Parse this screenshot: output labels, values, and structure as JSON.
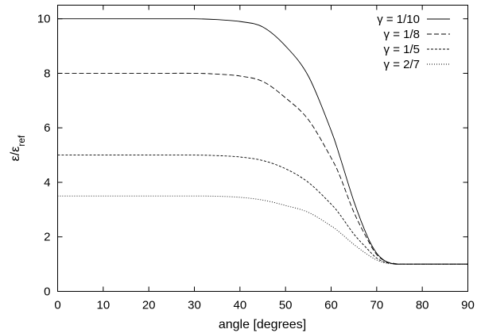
{
  "chart_data": {
    "type": "line",
    "title": "",
    "xlabel": "angle [degrees]",
    "ylabel": {
      "main": "ε/ε",
      "sub": "ref"
    },
    "xlim": [
      0,
      90
    ],
    "ylim": [
      0,
      10.5
    ],
    "xticks": [
      0,
      10,
      20,
      30,
      40,
      50,
      60,
      70,
      80,
      90
    ],
    "yticks": [
      0,
      2,
      4,
      6,
      8,
      10
    ],
    "xtick_labels": [
      "0",
      "10",
      "20",
      "30",
      "40",
      "50",
      "60",
      "70",
      "80",
      "90"
    ],
    "ytick_labels": [
      "0",
      "2",
      "4",
      "6",
      "8",
      "10"
    ],
    "grid": false,
    "legend_position": "top-right",
    "x": [
      0,
      10,
      20,
      30,
      35,
      40,
      45,
      50,
      55,
      60,
      62,
      65,
      68,
      70,
      72,
      74,
      76,
      78,
      80,
      85,
      90
    ],
    "series": [
      {
        "name": "γ = 1/10",
        "dash": "none",
        "values": [
          10.0,
          10.0,
          10.0,
          10.0,
          9.97,
          9.9,
          9.7,
          9.0,
          7.9,
          5.9,
          4.9,
          3.3,
          2.0,
          1.4,
          1.1,
          1.0,
          1.0,
          1.0,
          1.0,
          1.0,
          1.0
        ]
      },
      {
        "name": "γ = 1/8",
        "dash": "6,3",
        "values": [
          8.0,
          8.0,
          8.0,
          8.0,
          7.97,
          7.9,
          7.7,
          7.1,
          6.3,
          4.9,
          4.2,
          2.9,
          1.9,
          1.35,
          1.1,
          1.02,
          1.0,
          1.0,
          1.0,
          1.0,
          1.0
        ]
      },
      {
        "name": "γ = 1/5",
        "dash": "3,2",
        "values": [
          5.0,
          5.0,
          5.0,
          5.0,
          4.98,
          4.93,
          4.8,
          4.5,
          4.0,
          3.2,
          2.8,
          2.1,
          1.55,
          1.22,
          1.06,
          1.01,
          1.0,
          1.0,
          1.0,
          1.0,
          1.0
        ]
      },
      {
        "name": "γ = 2/7",
        "dash": "1,2",
        "values": [
          3.5,
          3.5,
          3.5,
          3.5,
          3.49,
          3.45,
          3.35,
          3.15,
          2.9,
          2.4,
          2.15,
          1.72,
          1.35,
          1.15,
          1.04,
          1.01,
          1.0,
          1.0,
          1.0,
          1.0,
          1.0
        ]
      }
    ]
  }
}
